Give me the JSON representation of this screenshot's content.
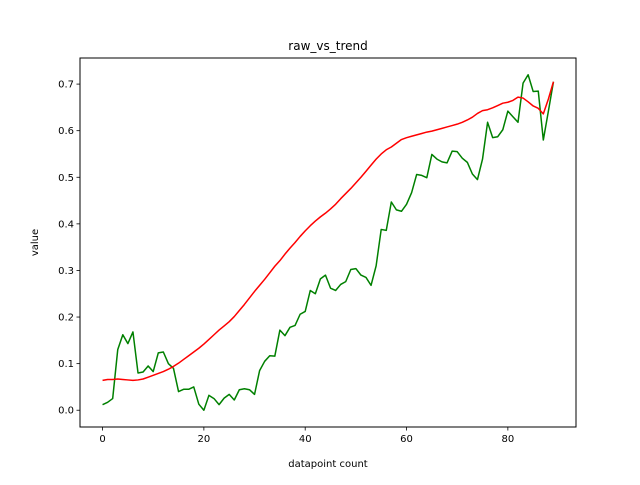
{
  "chart_data": {
    "type": "line",
    "title": "raw_vs_trend",
    "xlabel": "datapoint count",
    "ylabel": "value",
    "xlim": [
      -4.45,
      93.45
    ],
    "ylim": [
      -0.036,
      0.756
    ],
    "xticks": [
      0,
      20,
      40,
      60,
      80
    ],
    "yticks": [
      0.0,
      0.1,
      0.2,
      0.3,
      0.4,
      0.5,
      0.6,
      0.7
    ],
    "xtick_labels": [
      "0",
      "20",
      "40",
      "60",
      "80"
    ],
    "ytick_labels": [
      "0.0",
      "0.1",
      "0.2",
      "0.3",
      "0.4",
      "0.5",
      "0.6",
      "0.7"
    ],
    "grid": false,
    "legend": false,
    "series": [
      {
        "color": "#008000",
        "x": [
          0,
          1,
          2,
          3,
          4,
          5,
          6,
          7,
          8,
          9,
          10,
          11,
          12,
          13,
          14,
          15,
          16,
          17,
          18,
          19,
          20,
          21,
          22,
          23,
          24,
          25,
          26,
          27,
          28,
          29,
          30,
          31,
          32,
          33,
          34,
          35,
          36,
          37,
          38,
          39,
          40,
          41,
          42,
          43,
          44,
          45,
          46,
          47,
          48,
          49,
          50,
          51,
          52,
          53,
          54,
          55,
          56,
          57,
          58,
          59,
          60,
          61,
          62,
          63,
          64,
          65,
          66,
          67,
          68,
          69,
          70,
          71,
          72,
          73,
          74,
          75,
          76,
          77,
          78,
          79,
          80,
          81,
          82,
          83,
          84,
          85,
          86,
          87,
          88,
          89
        ],
        "y": [
          0.012,
          0.017,
          0.025,
          0.13,
          0.162,
          0.143,
          0.168,
          0.08,
          0.082,
          0.095,
          0.083,
          0.123,
          0.125,
          0.1,
          0.09,
          0.04,
          0.045,
          0.045,
          0.05,
          0.013,
          0.0,
          0.032,
          0.025,
          0.012,
          0.026,
          0.034,
          0.022,
          0.044,
          0.046,
          0.044,
          0.034,
          0.085,
          0.105,
          0.117,
          0.116,
          0.172,
          0.16,
          0.178,
          0.182,
          0.206,
          0.212,
          0.257,
          0.25,
          0.282,
          0.29,
          0.262,
          0.257,
          0.27,
          0.276,
          0.302,
          0.304,
          0.29,
          0.285,
          0.268,
          0.31,
          0.388,
          0.386,
          0.447,
          0.43,
          0.427,
          0.442,
          0.467,
          0.506,
          0.504,
          0.499,
          0.549,
          0.539,
          0.533,
          0.531,
          0.556,
          0.555,
          0.541,
          0.532,
          0.507,
          0.495,
          0.539,
          0.618,
          0.585,
          0.587,
          0.602,
          0.642,
          0.63,
          0.618,
          0.702,
          0.72,
          0.684,
          0.685,
          0.58,
          0.642,
          0.705
        ]
      },
      {
        "color": "#ff0000",
        "x": [
          0,
          1,
          2,
          3,
          4,
          5,
          6,
          7,
          8,
          9,
          10,
          11,
          12,
          13,
          14,
          15,
          16,
          17,
          18,
          19,
          20,
          21,
          22,
          23,
          24,
          25,
          26,
          27,
          28,
          29,
          30,
          31,
          32,
          33,
          34,
          35,
          36,
          37,
          38,
          39,
          40,
          41,
          42,
          43,
          44,
          45,
          46,
          47,
          48,
          49,
          50,
          51,
          52,
          53,
          54,
          55,
          56,
          57,
          58,
          59,
          60,
          61,
          62,
          63,
          64,
          65,
          66,
          67,
          68,
          69,
          70,
          71,
          72,
          73,
          74,
          75,
          76,
          77,
          78,
          79,
          80,
          81,
          82,
          83,
          84,
          85,
          86,
          87,
          88,
          89
        ],
        "y": [
          0.064,
          0.066,
          0.066,
          0.067,
          0.066,
          0.065,
          0.064,
          0.065,
          0.067,
          0.071,
          0.075,
          0.079,
          0.083,
          0.088,
          0.094,
          0.101,
          0.109,
          0.117,
          0.125,
          0.133,
          0.142,
          0.152,
          0.162,
          0.172,
          0.181,
          0.19,
          0.201,
          0.214,
          0.227,
          0.241,
          0.255,
          0.268,
          0.281,
          0.295,
          0.309,
          0.321,
          0.335,
          0.348,
          0.36,
          0.373,
          0.385,
          0.396,
          0.406,
          0.415,
          0.423,
          0.432,
          0.442,
          0.454,
          0.465,
          0.476,
          0.488,
          0.5,
          0.513,
          0.526,
          0.539,
          0.55,
          0.559,
          0.565,
          0.573,
          0.581,
          0.585,
          0.588,
          0.591,
          0.594,
          0.597,
          0.599,
          0.602,
          0.605,
          0.608,
          0.611,
          0.614,
          0.618,
          0.623,
          0.629,
          0.637,
          0.643,
          0.645,
          0.649,
          0.654,
          0.659,
          0.661,
          0.665,
          0.672,
          0.67,
          0.662,
          0.653,
          0.648,
          0.636,
          0.668,
          0.705
        ]
      }
    ]
  }
}
